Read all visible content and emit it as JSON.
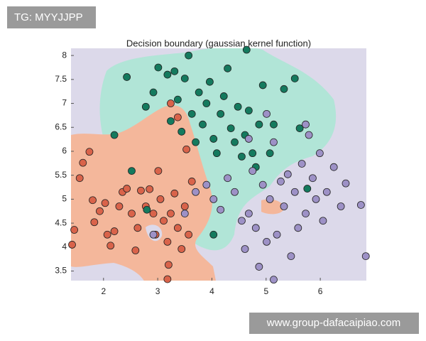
{
  "chart_data": {
    "type": "scatter",
    "title": "Decision boundary (gaussian kernel function)",
    "xlim": [
      1.4,
      6.85
    ],
    "ylim": [
      3.3,
      8.15
    ],
    "xticks": [
      2,
      3,
      4,
      5,
      6
    ],
    "yticks": [
      3.5,
      4,
      4.5,
      5,
      5.5,
      6,
      6.5,
      7,
      7.5,
      8
    ],
    "grid": false,
    "series": [
      {
        "color": "#d9634a",
        "x": [
          1.46,
          1.42,
          1.56,
          1.62,
          1.74,
          1.8,
          1.83,
          1.93,
          2.03,
          2.07,
          2.13,
          2.2,
          2.29,
          2.35,
          2.43,
          2.52,
          2.59,
          2.63,
          2.69,
          2.78,
          2.85,
          2.92,
          2.96,
          3.01,
          3.05,
          3.11,
          3.18,
          3.24,
          3.31,
          3.37,
          3.44,
          3.5,
          3.2,
          3.18,
          3.57,
          3.63,
          3.53,
          3.37,
          3.24
        ],
        "values": [
          4.36,
          4.05,
          5.44,
          5.76,
          5.99,
          4.98,
          4.52,
          4.75,
          4.92,
          4.26,
          4.03,
          4.33,
          4.85,
          5.15,
          5.22,
          4.7,
          3.93,
          4.4,
          5.18,
          4.85,
          5.21,
          4.7,
          4.26,
          5.59,
          5.0,
          4.55,
          4.11,
          4.7,
          5.12,
          4.4,
          3.96,
          4.85,
          3.63,
          3.33,
          4.26,
          5.37,
          6.04,
          6.71,
          7.0
        ]
      },
      {
        "color": "#147a5e",
        "x": [
          2.43,
          2.78,
          2.92,
          3.01,
          3.18,
          3.24,
          3.31,
          3.37,
          3.44,
          3.5,
          3.57,
          3.63,
          3.7,
          3.76,
          3.83,
          3.9,
          3.96,
          4.03,
          4.09,
          4.16,
          4.22,
          4.29,
          4.35,
          4.42,
          4.48,
          4.55,
          4.61,
          4.64,
          4.68,
          4.75,
          4.81,
          4.87,
          4.94,
          5.07,
          5.14,
          5.33,
          5.53,
          5.62,
          2.2,
          2.52,
          2.8,
          4.03,
          5.76
        ],
        "values": [
          7.55,
          6.93,
          7.23,
          7.75,
          7.6,
          6.63,
          7.67,
          7.08,
          6.41,
          7.52,
          8.0,
          6.78,
          6.19,
          7.23,
          6.56,
          7.0,
          7.45,
          6.26,
          5.96,
          6.78,
          7.15,
          7.73,
          6.48,
          6.19,
          6.93,
          5.89,
          6.34,
          8.12,
          6.85,
          5.96,
          5.67,
          6.56,
          7.38,
          5.96,
          6.56,
          7.3,
          7.52,
          6.48,
          6.34,
          5.59,
          4.78,
          4.26,
          5.22
        ]
      },
      {
        "color": "#9d91c6",
        "x": [
          2.92,
          3.5,
          3.7,
          3.9,
          4.03,
          4.16,
          4.29,
          4.42,
          4.55,
          4.61,
          4.68,
          4.75,
          4.81,
          4.87,
          4.94,
          5.01,
          5.07,
          5.14,
          5.2,
          5.27,
          5.33,
          5.4,
          5.46,
          5.53,
          5.59,
          5.66,
          5.73,
          5.79,
          5.86,
          5.92,
          5.99,
          6.05,
          6.12,
          6.25,
          6.38,
          6.47,
          6.75,
          6.84,
          5.01,
          5.14,
          5.73,
          4.68
        ],
        "values": [
          4.26,
          4.7,
          5.15,
          5.3,
          5.0,
          4.78,
          5.44,
          5.15,
          4.55,
          3.96,
          4.7,
          5.59,
          4.4,
          3.59,
          5.3,
          4.11,
          5.0,
          6.19,
          4.26,
          5.37,
          4.85,
          5.52,
          3.81,
          5.15,
          4.4,
          5.74,
          4.7,
          6.34,
          5.44,
          5.0,
          5.96,
          4.55,
          5.15,
          5.67,
          4.85,
          5.33,
          4.88,
          3.81,
          6.78,
          3.32,
          6.56,
          6.26
        ]
      }
    ]
  },
  "watermarks": [
    "TG: MYYJJPP",
    "www.group-dafacaipiao.com"
  ]
}
